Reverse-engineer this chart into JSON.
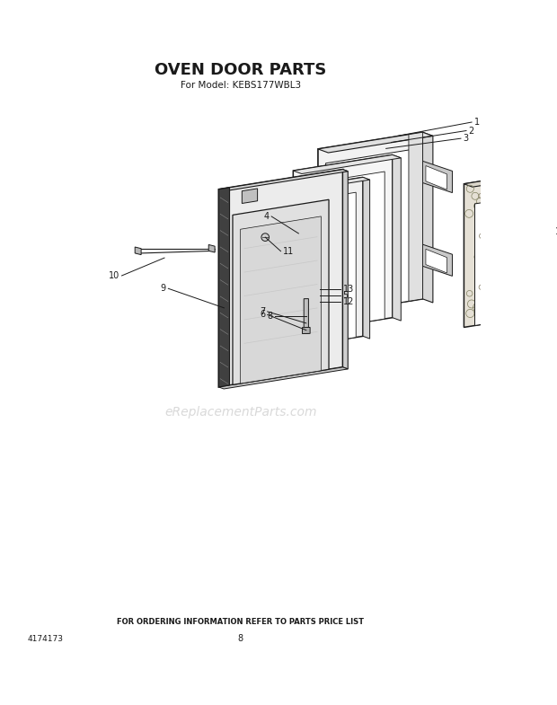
{
  "title": "OVEN DOOR PARTS",
  "subtitle": "For Model: KEBS177WBL3",
  "footer_text": "FOR ORDERING INFORMATION REFER TO PARTS PRICE LIST",
  "part_number": "4174173",
  "page_number": "8",
  "watermark": "eReplacementParts.com",
  "bg_color": "#ffffff",
  "line_color": "#1a1a1a",
  "title_fontsize": 13,
  "subtitle_fontsize": 7.5,
  "footer_fontsize": 6,
  "label_fontsize": 7,
  "watermark_fontsize": 10
}
